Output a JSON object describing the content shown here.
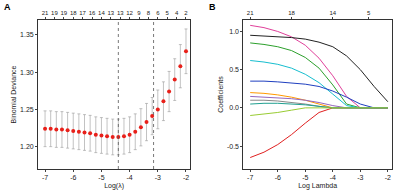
{
  "chart_data": [
    {
      "type": "scatter",
      "panel": "A",
      "x_label": "Log(λ)",
      "y_label": "Binomial Deviance",
      "x": [
        -7,
        -6.8,
        -6.6,
        -6.4,
        -6.2,
        -6,
        -5.8,
        -5.6,
        -5.4,
        -5.2,
        -5,
        -4.8,
        -4.6,
        -4.4,
        -4.2,
        -4,
        -3.8,
        -3.6,
        -3.4,
        -3.2,
        -3,
        -2.8,
        -2.6,
        -2.4,
        -2.2,
        -2
      ],
      "values": [
        1.224,
        1.224,
        1.223,
        1.223,
        1.222,
        1.221,
        1.22,
        1.219,
        1.218,
        1.216,
        1.215,
        1.214,
        1.213,
        1.213,
        1.214,
        1.216,
        1.22,
        1.226,
        1.233,
        1.241,
        1.25,
        1.261,
        1.274,
        1.29,
        1.308,
        1.328
      ],
      "error": [
        0.024,
        0.024,
        0.024,
        0.024,
        0.024,
        0.024,
        0.024,
        0.024,
        0.024,
        0.024,
        0.024,
        0.024,
        0.024,
        0.024,
        0.024,
        0.024,
        0.024,
        0.025,
        0.025,
        0.025,
        0.026,
        0.026,
        0.027,
        0.028,
        0.029,
        0.03
      ],
      "color": "#e8201a",
      "marker": "circle",
      "vlines": [
        -4.4,
        -3.15
      ],
      "line_style": "dotted",
      "xlim": [
        -7.25,
        -1.85
      ],
      "xticks": [
        -7,
        -6,
        -5,
        -4,
        -3,
        -2
      ],
      "ylim": [
        1.17,
        1.37
      ],
      "yticks": [
        {
          "value": 1.2,
          "label": "1.20"
        },
        {
          "value": 1.25,
          "label": "1.25"
        },
        {
          "value": 1.3,
          "label": "1.30"
        },
        {
          "value": 1.35,
          "label": "1.35"
        }
      ],
      "top_ticks": [
        {
          "value": -7,
          "label": "21"
        },
        {
          "value": -6.667,
          "label": "19"
        },
        {
          "value": -6.333,
          "label": "19"
        },
        {
          "value": -6,
          "label": "18"
        },
        {
          "value": -5.667,
          "label": "17"
        },
        {
          "value": -5.333,
          "label": "16"
        },
        {
          "value": -5,
          "label": "14"
        },
        {
          "value": -4.667,
          "label": "13"
        },
        {
          "value": -4.333,
          "label": "13"
        },
        {
          "value": -4,
          "label": "12"
        },
        {
          "value": -3.667,
          "label": "9"
        },
        {
          "value": -3.333,
          "label": "8"
        },
        {
          "value": -3,
          "label": "6"
        },
        {
          "value": -2.667,
          "label": "5"
        },
        {
          "value": -2.333,
          "label": "4"
        },
        {
          "value": -2,
          "label": "2"
        }
      ],
      "grid": false
    },
    {
      "type": "line",
      "panel": "B",
      "x_label": "Log Lambda",
      "y_label": "Coefficients",
      "x": [
        -7,
        -6.5,
        -6,
        -5.5,
        -5,
        -4.5,
        -4,
        -3.5,
        -3,
        -2.5,
        -2
      ],
      "series": [
        {
          "color": "#e0409a",
          "values": [
            1.08,
            1.05,
            1.0,
            0.93,
            0.82,
            0.65,
            0.42,
            0.15,
            0,
            0,
            0
          ]
        },
        {
          "color": "#222222",
          "values": [
            0.95,
            0.94,
            0.93,
            0.92,
            0.9,
            0.86,
            0.8,
            0.68,
            0.5,
            0.28,
            0.08
          ]
        },
        {
          "color": "#2ca02c",
          "values": [
            0.85,
            0.83,
            0.8,
            0.75,
            0.66,
            0.52,
            0.3,
            0.05,
            0,
            0,
            0
          ]
        },
        {
          "color": "#17becf",
          "values": [
            0.62,
            0.6,
            0.57,
            0.52,
            0.44,
            0.33,
            0.18,
            0.03,
            0,
            0,
            0
          ]
        },
        {
          "color": "#1f3fbf",
          "values": [
            0.35,
            0.35,
            0.34,
            0.33,
            0.31,
            0.28,
            0.22,
            0.14,
            0.05,
            0,
            0
          ]
        },
        {
          "color": "#e02020",
          "values": [
            -0.65,
            -0.58,
            -0.48,
            -0.35,
            -0.2,
            -0.06,
            0,
            0,
            0,
            0,
            0
          ]
        },
        {
          "color": "#ff9900",
          "values": [
            0.2,
            0.19,
            0.17,
            0.14,
            0.1,
            0.05,
            0,
            0,
            0,
            0,
            0
          ]
        },
        {
          "color": "#9467bd",
          "values": [
            0.15,
            0.14,
            0.13,
            0.12,
            0.1,
            0.07,
            0.03,
            0,
            0,
            0,
            0
          ]
        },
        {
          "color": "#888888",
          "values": [
            0.1,
            0.1,
            0.09,
            0.07,
            0.05,
            0.02,
            0,
            0,
            0,
            0,
            0
          ]
        },
        {
          "color": "#20a090",
          "values": [
            0.05,
            0.06,
            0.06,
            0.05,
            0.04,
            0.02,
            0,
            0,
            0,
            0,
            0
          ]
        },
        {
          "color": "#99cc33",
          "values": [
            -0.1,
            -0.08,
            -0.06,
            -0.03,
            0,
            0,
            0,
            0,
            0,
            0,
            0
          ]
        }
      ],
      "xlim": [
        -7.25,
        -1.85
      ],
      "xticks": [
        -7,
        -6,
        -5,
        -4,
        -3,
        -2
      ],
      "ylim": [
        -0.8,
        1.15
      ],
      "yticks": [
        -0.5,
        {
          "value": 0,
          "label": "0.0"
        },
        0.5,
        {
          "value": 1,
          "label": "1.0"
        }
      ],
      "top_ticks": [
        {
          "value": -7,
          "label": "21"
        },
        {
          "value": -5.5,
          "label": "18"
        },
        {
          "value": -4,
          "label": "14"
        },
        {
          "value": -2.7,
          "label": "5"
        }
      ],
      "grid": false
    }
  ]
}
